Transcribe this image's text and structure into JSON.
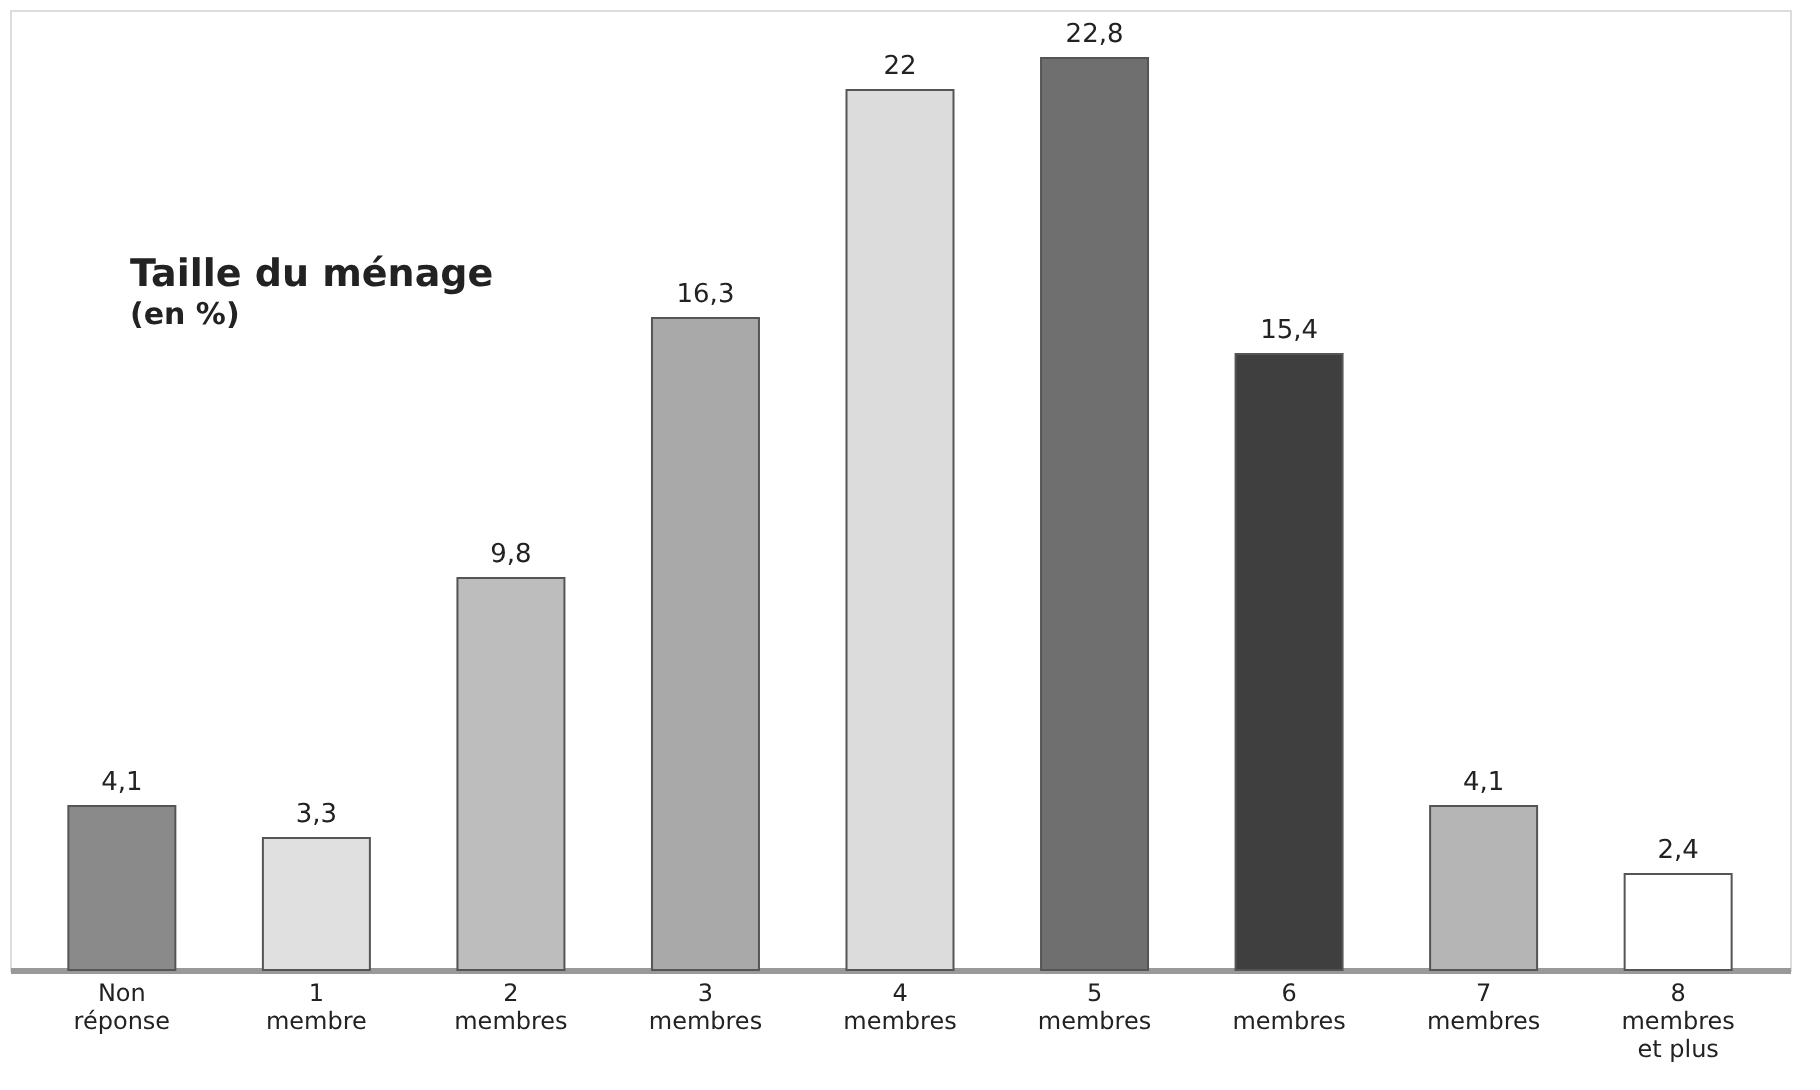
{
  "chart_data": {
    "type": "bar",
    "title": "Taille du ménage",
    "subtitle": "(en %)",
    "categories": [
      "Non\nréponse",
      "1\nmembre",
      "2\nmembres",
      "3\nmembres",
      "4\nmembres",
      "5\nmembres",
      "6\nmembres",
      "7\nmembres",
      "8\nmembres\net plus"
    ],
    "values": [
      4.1,
      3.3,
      9.8,
      16.3,
      22,
      22.8,
      15.4,
      4.1,
      2.4
    ],
    "colors": [
      "#8a8a8a",
      "#e0e0e0",
      "#bdbdbd",
      "#a9a9a9",
      "#dcdcdc",
      "#6f6f6f",
      "#3f3f3f",
      "#b5b5b5",
      "#ffffff"
    ],
    "value_labels": [
      "4,1",
      "3,3",
      "9,8",
      "16,3",
      "22",
      "22,8",
      "15,4",
      "4,1",
      "2,4"
    ],
    "tick_labels": "x",
    "grid": false
  }
}
